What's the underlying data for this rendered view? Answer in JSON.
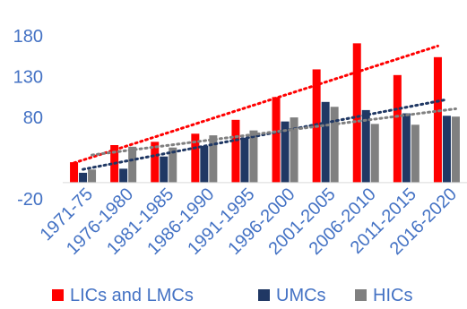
{
  "chart_data": {
    "type": "bar",
    "categories": [
      "1971-75",
      "1976-1980",
      "1981-1985",
      "1986-1990",
      "1991-1995",
      "1996-2000",
      "2001-2005",
      "2006-2010",
      "2011-2015",
      "2016-2020"
    ],
    "series": [
      {
        "name": "LICs and LMCs",
        "color": "#FF0000",
        "values": [
          25,
          46,
          50,
          60,
          77,
          105,
          139,
          171,
          132,
          154
        ]
      },
      {
        "name": "UMCs",
        "color": "#203864",
        "values": [
          12,
          17,
          32,
          45,
          55,
          75,
          99,
          89,
          85,
          82
        ]
      },
      {
        "name": "HICs",
        "color": "#808080",
        "values": [
          16,
          44,
          43,
          58,
          64,
          80,
          93,
          72,
          71,
          81
        ]
      }
    ],
    "trendlines": true,
    "ylim": [
      -20,
      200
    ],
    "yticks": [
      -20,
      80,
      130,
      180
    ],
    "grid": false,
    "legend_position": "bottom"
  }
}
